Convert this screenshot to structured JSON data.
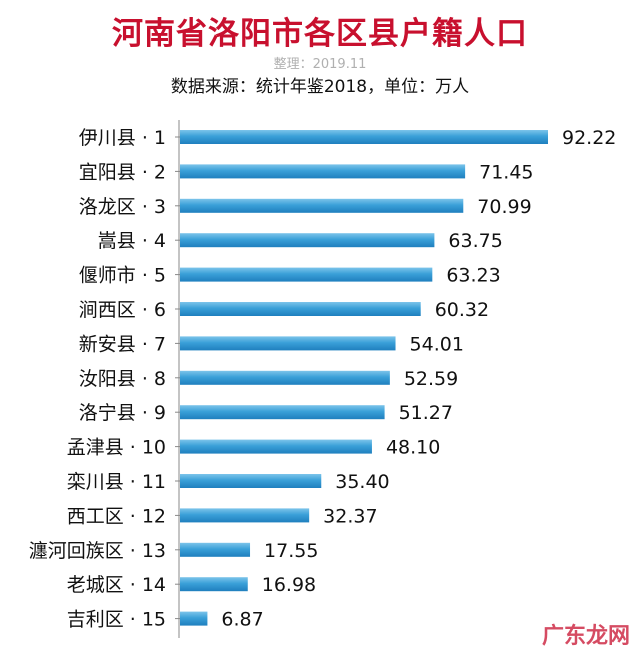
{
  "chart_data": {
    "type": "bar",
    "orientation": "horizontal",
    "title": "河南省洛阳市各区县户籍人口",
    "subtitle": "整理：2019.11",
    "source": "数据来源：统计年鉴2018，单位：万人",
    "categories": [
      "伊川县 · 1",
      "宜阳县 · 2",
      "洛龙区 · 3",
      "嵩县 · 4",
      "偃师市 · 5",
      "涧西区 · 6",
      "新安县 · 7",
      "汝阳县 · 8",
      "洛宁县 · 9",
      "孟津县 · 10",
      "栾川县 · 11",
      "西工区 · 12",
      "瀍河回族区 · 13",
      "老城区 · 14",
      "吉利区 · 15"
    ],
    "values": [
      92.22,
      71.45,
      70.99,
      63.75,
      63.23,
      60.32,
      54.01,
      52.59,
      51.27,
      48.1,
      35.4,
      32.37,
      17.55,
      16.98,
      6.87
    ],
    "value_labels": [
      "92.22",
      "71.45",
      "70.99",
      "63.75",
      "63.23",
      "60.32",
      "54.01",
      "52.59",
      "51.27",
      "48.10",
      "35.40",
      "32.37",
      "17.55",
      "16.98",
      "6.87"
    ],
    "xlim": [
      0,
      92.22
    ],
    "grid": false,
    "bar_color": "#3aa0d8"
  },
  "watermark": "广东龙网"
}
